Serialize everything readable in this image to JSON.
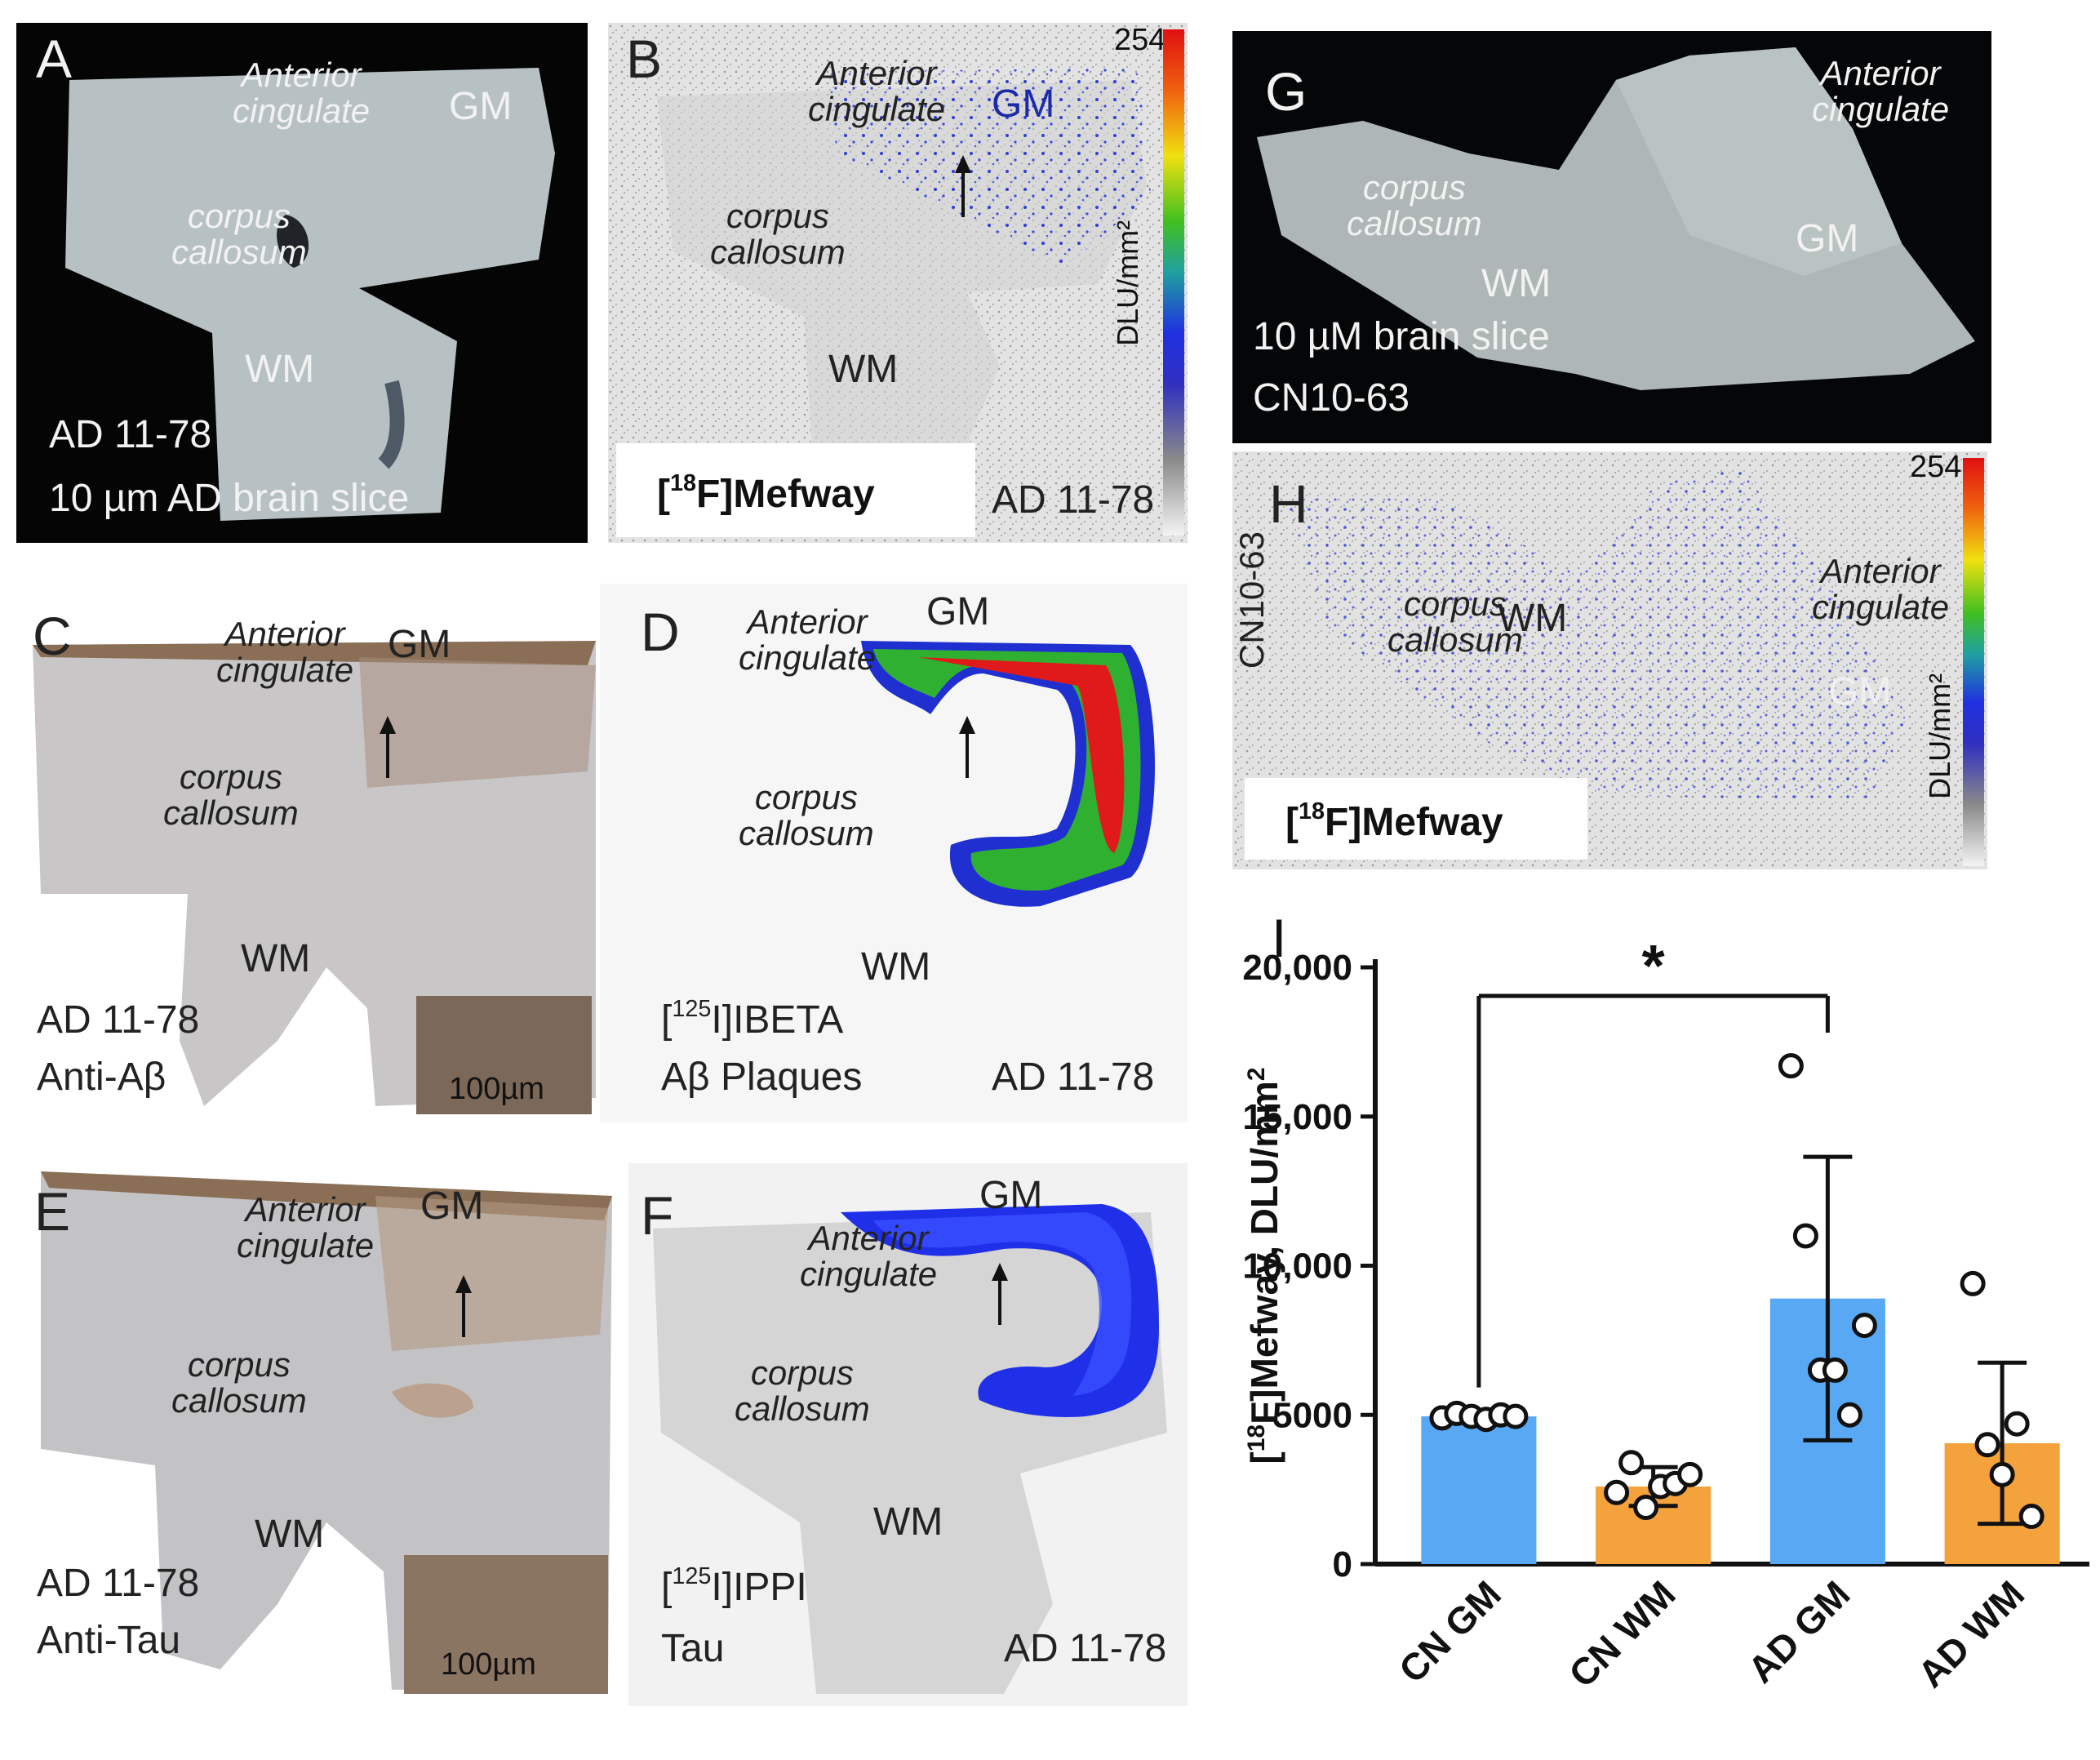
{
  "panels": {
    "A": {
      "letter": "A",
      "region": "Anterior\ncingulate",
      "gm": "GM",
      "cc": "corpus\ncallosum",
      "wm": "WM",
      "footer1": "AD 11-78",
      "footer2": "10 µm  AD brain slice"
    },
    "B": {
      "letter": "B",
      "region": "Anterior\ncingulate",
      "gm": "GM",
      "cc": "corpus\ncallosum",
      "wm": "WM",
      "tracer": "[18F]Mefway",
      "tracer_iso": "18",
      "tracer_name": "F]Mefway",
      "case": "AD 11-78",
      "scale_max": "254",
      "scale_unit": "DLU/mm²"
    },
    "C": {
      "letter": "C",
      "region": "Anterior\ncingulate",
      "gm": "GM",
      "cc": "corpus\ncallosum",
      "wm": "WM",
      "footer1": "AD 11-78",
      "footer2": "Anti-Aβ",
      "inset_scale": "100µm"
    },
    "D": {
      "letter": "D",
      "region": "Anterior\ncingulate",
      "gm": "GM",
      "cc": "corpus\ncallosum",
      "wm": "WM",
      "tracer_iso": "125",
      "tracer_name": "I]IBETA",
      "target": "Aβ Plaques",
      "case": "AD 11-78"
    },
    "E": {
      "letter": "E",
      "region": "Anterior\ncingulate",
      "gm": "GM",
      "cc": "corpus\ncallosum",
      "wm": "WM",
      "footer1": "AD 11-78",
      "footer2": "Anti-Tau",
      "inset_scale": "100µm"
    },
    "F": {
      "letter": "F",
      "region": "Anterior\ncingulate",
      "gm": "GM",
      "cc": "corpus\ncallosum",
      "wm": "WM",
      "tracer_iso": "125",
      "tracer_name": "I]IPPI",
      "target": "Tau",
      "case": "AD 11-78"
    },
    "G": {
      "letter": "G",
      "region": "Anterior\ncingulate",
      "gm": "GM",
      "cc": "corpus\ncallosum",
      "wm": "WM",
      "footer1": "10 µM brain slice",
      "footer2": "CN10-63"
    },
    "H": {
      "letter": "H",
      "region": "Anterior\ncingulate",
      "gm": "GM",
      "cc": "corpus\ncallosum",
      "wm": "WM",
      "case": "CN10-63",
      "tracer_iso": "18",
      "tracer_name": "F]Mefway",
      "scale_max": "254",
      "scale_unit": "DLU/mm²"
    },
    "I": {
      "letter": "I"
    }
  },
  "colors": {
    "gm_bar": "#58a8f4",
    "wm_bar": "#f4a23c",
    "autorad_blue": "#2a35d8"
  },
  "chart_data": {
    "type": "bar",
    "categories": [
      "CN GM",
      "CN WM",
      "AD GM",
      "AD WM"
    ],
    "values": [
      4950,
      2600,
      8900,
      4050
    ],
    "error": [
      150,
      650,
      4750,
      2700
    ],
    "points": [
      [
        4900,
        5050,
        4950,
        4850,
        5000,
        4950
      ],
      [
        2400,
        3400,
        1900,
        2600,
        2700,
        3000
      ],
      [
        16700,
        11000,
        6500,
        6500,
        5000,
        8000
      ],
      [
        9400,
        4000,
        3000,
        4700,
        1600
      ]
    ],
    "bar_colors": [
      "#58a8f4",
      "#f4a23c",
      "#58a8f4",
      "#f4a23c"
    ],
    "ylabel": "[18F]Mefway, DLU/mm2",
    "ylabel_iso": "18",
    "ylabel_rest": "F]Mefway, DLU/mm",
    "ylabel_sup": "2",
    "ylim": [
      0,
      20000
    ],
    "yticks": [
      "0",
      "5000",
      "10,000",
      "15,000",
      "20,000"
    ],
    "ytick_values": [
      0,
      5000,
      10000,
      15000,
      20000
    ],
    "significance": {
      "from": "CN GM",
      "to": "AD GM",
      "label": "*"
    }
  }
}
